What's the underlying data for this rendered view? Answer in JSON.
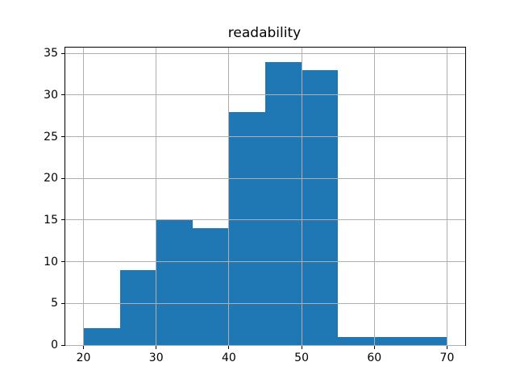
{
  "chart_data": {
    "type": "bar",
    "subtype": "histogram",
    "title": "readability",
    "xlabel": "",
    "ylabel": "",
    "bin_edges": [
      20,
      25,
      30,
      35,
      40,
      45,
      50,
      55,
      60,
      65,
      70
    ],
    "values": [
      2,
      9,
      15,
      14,
      28,
      34,
      33,
      1,
      1,
      1
    ],
    "x_ticks": [
      20,
      30,
      40,
      50,
      60,
      70
    ],
    "y_ticks": [
      0,
      5,
      10,
      15,
      20,
      25,
      30,
      35
    ],
    "xlim": [
      17.5,
      72.5
    ],
    "ylim": [
      0,
      35.7
    ],
    "grid": true,
    "grid_above_bars": true,
    "legend": "none",
    "colors": {
      "bar": "#1f77b4",
      "grid": "#b0b0b0",
      "spine": "#000000",
      "text": "#000000",
      "background": "#ffffff"
    }
  }
}
